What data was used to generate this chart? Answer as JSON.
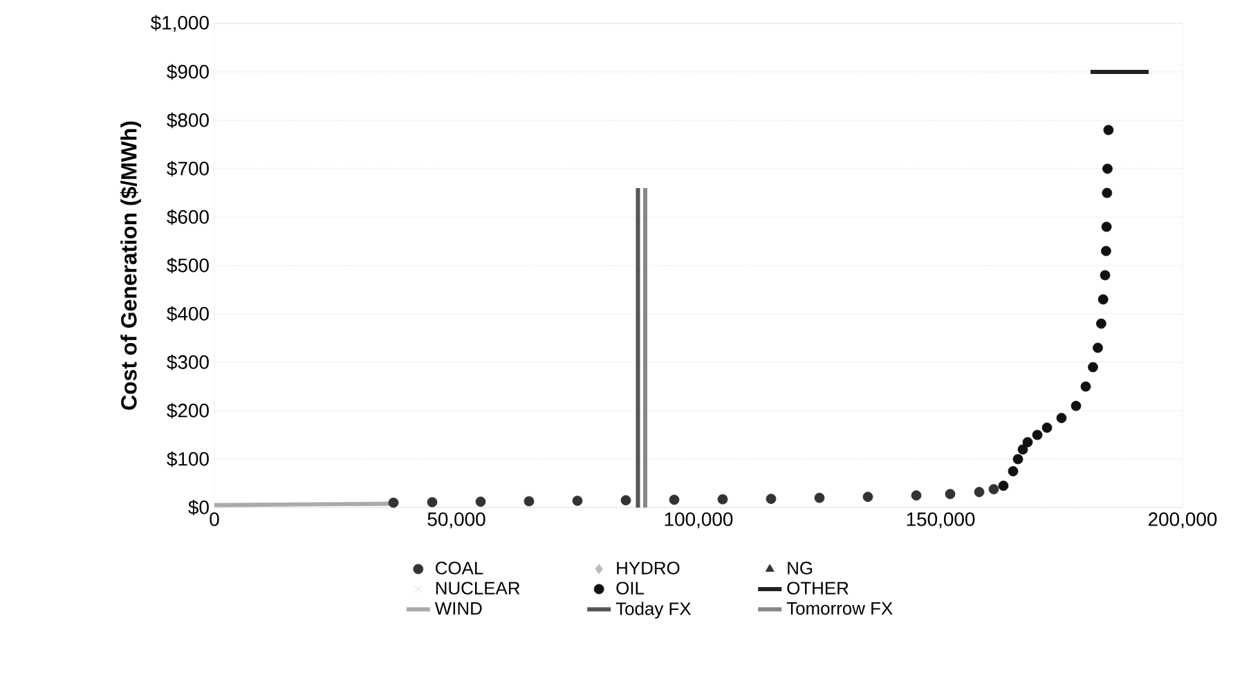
{
  "chart_data": {
    "type": "scatter",
    "ylabel": "Cost of Generation ($/MWh)",
    "xlim": [
      0,
      200000
    ],
    "ylim": [
      0,
      1000
    ],
    "xticks": [
      {
        "value": 0,
        "label": "0"
      },
      {
        "value": 50000,
        "label": "50,000"
      },
      {
        "value": 100000,
        "label": "100,000"
      },
      {
        "value": 150000,
        "label": "150,000"
      },
      {
        "value": 200000,
        "label": "200,000"
      }
    ],
    "yticks": [
      {
        "value": 0,
        "label": "$0"
      },
      {
        "value": 100,
        "label": "$100"
      },
      {
        "value": 200,
        "label": "$200"
      },
      {
        "value": 300,
        "label": "$300"
      },
      {
        "value": 400,
        "label": "$400"
      },
      {
        "value": 500,
        "label": "$500"
      },
      {
        "value": 600,
        "label": "$600"
      },
      {
        "value": 700,
        "label": "$700"
      },
      {
        "value": 800,
        "label": "$800"
      },
      {
        "value": 900,
        "label": "$900"
      },
      {
        "value": 1000,
        "label": "$1,000"
      }
    ],
    "grid": "y",
    "legend": "bottom",
    "series": [
      {
        "name": "COAL",
        "marker": "circle",
        "color": "#333333",
        "x": [
          37000,
          45000,
          55000,
          65000,
          75000,
          85000,
          95000,
          105000,
          115000,
          125000,
          135000,
          145000,
          152000,
          158000,
          161000
        ],
        "values": [
          10,
          11,
          12,
          13,
          14,
          15,
          16,
          17,
          18,
          20,
          22,
          25,
          28,
          32,
          38
        ]
      },
      {
        "name": "HYDRO",
        "marker": "diamond",
        "color": "#bbbbbb"
      },
      {
        "name": "NG",
        "marker": "triangle",
        "color": "#333333"
      },
      {
        "name": "NUCLEAR",
        "marker": "cross",
        "color": "#cccccc"
      },
      {
        "name": "OIL",
        "marker": "circle",
        "color": "#111111",
        "x": [
          163000,
          165000,
          166000,
          167000,
          168000,
          170000,
          172000,
          175000,
          178000,
          180000,
          181500,
          182500,
          183200,
          183600,
          184000,
          184200,
          184300,
          184400,
          184500,
          184700
        ],
        "values": [
          45,
          75,
          100,
          120,
          135,
          150,
          165,
          185,
          210,
          250,
          290,
          330,
          380,
          430,
          480,
          530,
          580,
          650,
          700,
          780
        ]
      },
      {
        "name": "OTHER",
        "type": "line",
        "color": "#222222",
        "x": [
          181000,
          193000
        ],
        "values": [
          900,
          900
        ]
      },
      {
        "name": "WIND",
        "type": "line",
        "color": "#aaaaaa",
        "x": [
          0,
          37000
        ],
        "values": [
          5,
          8
        ]
      },
      {
        "name": "Today FX",
        "type": "line",
        "color": "#555555",
        "x": [
          87500,
          87500
        ],
        "values": [
          0,
          660
        ]
      },
      {
        "name": "Tomorrow FX",
        "type": "line",
        "color": "#888888",
        "x": [
          89000,
          89000
        ],
        "values": [
          0,
          660
        ]
      }
    ]
  }
}
